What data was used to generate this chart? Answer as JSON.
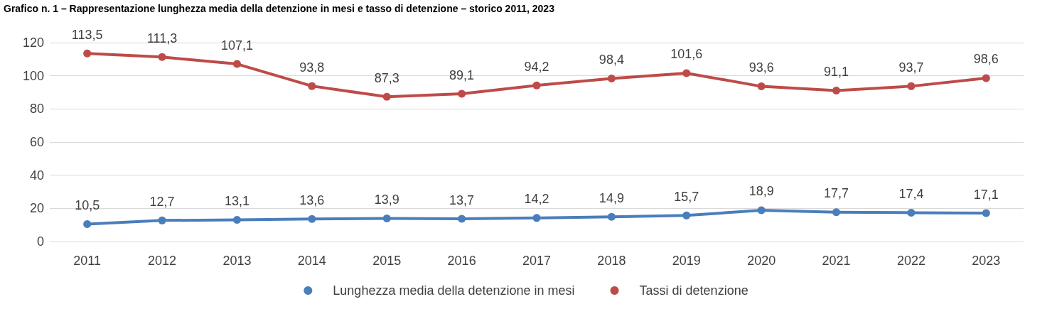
{
  "chart_data": {
    "type": "line",
    "title": "Grafico n. 1 – Rappresentazione lunghezza media della detenzione in mesi e tasso di detenzione – storico 2011, 2023",
    "categories": [
      "2011",
      "2012",
      "2013",
      "2014",
      "2015",
      "2016",
      "2017",
      "2018",
      "2019",
      "2020",
      "2021",
      "2022",
      "2023"
    ],
    "series": [
      {
        "name": "Lunghezza media della detenzione in mesi",
        "color": "#4a7ebb",
        "values": [
          10.5,
          12.7,
          13.1,
          13.6,
          13.9,
          13.7,
          14.2,
          14.9,
          15.7,
          18.9,
          17.7,
          17.4,
          17.1
        ],
        "value_labels": [
          "10,5",
          "12,7",
          "13,1",
          "13,6",
          "13,9",
          "13,7",
          "14,2",
          "14,9",
          "15,7",
          "18,9",
          "17,7",
          "17,4",
          "17,1"
        ]
      },
      {
        "name": "Tassi di detenzione",
        "color": "#be4b48",
        "values": [
          113.5,
          111.3,
          107.1,
          93.8,
          87.3,
          89.1,
          94.2,
          98.4,
          101.6,
          93.6,
          91.1,
          93.7,
          98.6
        ],
        "value_labels": [
          "113,5",
          "111,3",
          "107,1",
          "93,8",
          "87,3",
          "89,1",
          "94,2",
          "98,4",
          "101,6",
          "93,6",
          "91,1",
          "93,7",
          "98,6"
        ]
      }
    ],
    "ylim": [
      0,
      120
    ],
    "yticks": [
      0,
      20,
      40,
      60,
      80,
      100,
      120
    ],
    "grid": "y",
    "legend": "bottom",
    "marker": "circle",
    "line_style": "solid"
  }
}
